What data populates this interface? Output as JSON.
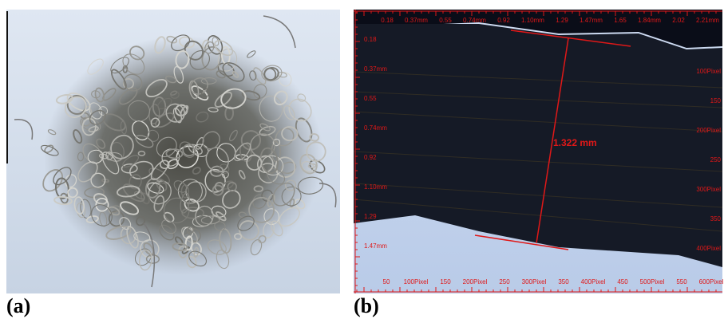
{
  "panels": [
    {
      "label": "(a)"
    },
    {
      "label": "(b)",
      "measurement": "1.322 mm",
      "ruler": {
        "top": [
          "0.18",
          "0.37mm",
          "0.55",
          "0.74mm",
          "0.92",
          "1.10mm",
          "1.29",
          "1.47mm",
          "1.65",
          "1.84mm",
          "2.02",
          "2.21mm"
        ],
        "left": [
          "0.18",
          "0.37mm",
          "0.55",
          "0.74mm",
          "0.92",
          "1.10mm",
          "1.29",
          "1.47mm"
        ],
        "right": [
          "100Pixel",
          "150",
          "200Pixel",
          "250",
          "300Pixel",
          "350",
          "400Pixel"
        ],
        "bottom": [
          "50",
          "100Pixel",
          "150",
          "200Pixel",
          "250",
          "300Pixel",
          "350",
          "400Pixel",
          "450",
          "500Pixel",
          "550",
          "600Pixel"
        ]
      }
    }
  ]
}
